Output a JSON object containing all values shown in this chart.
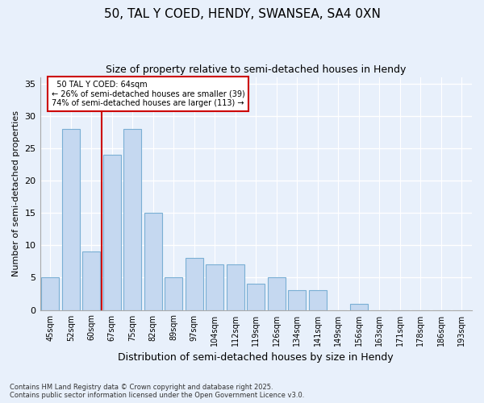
{
  "title1": "50, TAL Y COED, HENDY, SWANSEA, SA4 0XN",
  "title2": "Size of property relative to semi-detached houses in Hendy",
  "xlabel": "Distribution of semi-detached houses by size in Hendy",
  "ylabel": "Number of semi-detached properties",
  "categories": [
    "45sqm",
    "52sqm",
    "60sqm",
    "67sqm",
    "75sqm",
    "82sqm",
    "89sqm",
    "97sqm",
    "104sqm",
    "112sqm",
    "119sqm",
    "126sqm",
    "134sqm",
    "141sqm",
    "149sqm",
    "156sqm",
    "163sqm",
    "171sqm",
    "178sqm",
    "186sqm",
    "193sqm"
  ],
  "values": [
    5,
    28,
    9,
    24,
    28,
    15,
    5,
    8,
    7,
    7,
    4,
    5,
    3,
    3,
    0,
    1,
    0,
    0,
    0,
    0,
    0
  ],
  "bar_color": "#c5d8f0",
  "bar_edge_color": "#7aafd4",
  "background_color": "#e8f0fb",
  "grid_color": "#ffffff",
  "property_label": "50 TAL Y COED: 64sqm",
  "pct_smaller": 26,
  "pct_smaller_n": 39,
  "pct_larger": 74,
  "pct_larger_n": 113,
  "redline_color": "#cc0000",
  "annotation_box_color": "#ffffff",
  "annotation_box_edge": "#cc0000",
  "ylim": [
    0,
    36
  ],
  "yticks": [
    0,
    5,
    10,
    15,
    20,
    25,
    30,
    35
  ],
  "footnote1": "Contains HM Land Registry data © Crown copyright and database right 2025.",
  "footnote2": "Contains public sector information licensed under the Open Government Licence v3.0."
}
